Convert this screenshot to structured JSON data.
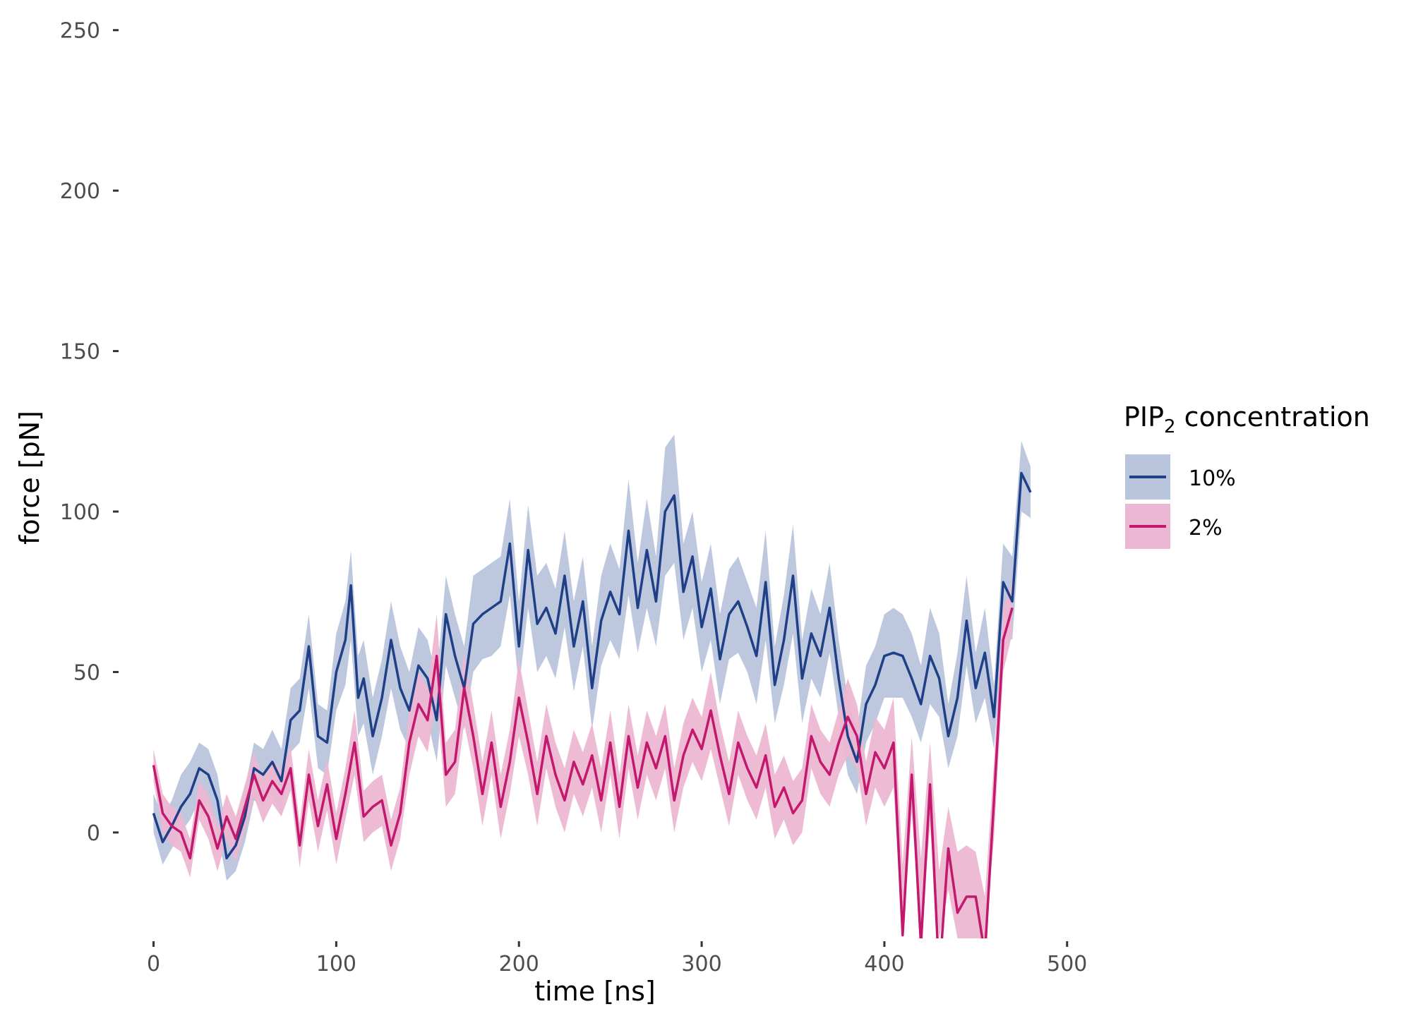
{
  "chart_data": {
    "type": "line",
    "title": "",
    "xlabel": "time [ns]",
    "ylabel": "force [pN]",
    "xlim": [
      -6,
      514
    ],
    "ylim": [
      -33,
      255
    ],
    "x_ticks": [
      0,
      100,
      200,
      300,
      400,
      500
    ],
    "y_ticks": [
      0,
      50,
      100,
      150,
      200,
      250
    ],
    "grid": false,
    "legend": {
      "title_main": "PIP",
      "title_sub": "2",
      "title_rest": " concentration",
      "placement": "right"
    },
    "series": [
      {
        "name": "10%",
        "line_color": "#1f3f87",
        "band_color": "#b9c5dc",
        "x": [
          0,
          5,
          10,
          15,
          20,
          25,
          30,
          35,
          40,
          45,
          50,
          55,
          60,
          65,
          70,
          75,
          80,
          85,
          90,
          95,
          100,
          105,
          108,
          112,
          115,
          120,
          125,
          130,
          135,
          140,
          145,
          150,
          155,
          160,
          165,
          170,
          175,
          180,
          185,
          190,
          195,
          200,
          205,
          210,
          215,
          220,
          225,
          230,
          235,
          240,
          245,
          250,
          255,
          260,
          265,
          270,
          275,
          280,
          285,
          290,
          295,
          300,
          305,
          310,
          315,
          320,
          325,
          330,
          335,
          340,
          345,
          350,
          355,
          360,
          365,
          370,
          375,
          380,
          385,
          390,
          395,
          400,
          405,
          410,
          415,
          420,
          425,
          430,
          435,
          440,
          445,
          450,
          455,
          460,
          465,
          470,
          475,
          480
        ],
        "y": [
          6,
          -3,
          2,
          8,
          12,
          20,
          18,
          10,
          -8,
          -4,
          5,
          20,
          18,
          22,
          16,
          35,
          38,
          58,
          30,
          28,
          50,
          60,
          77,
          42,
          48,
          30,
          42,
          60,
          45,
          38,
          52,
          48,
          35,
          68,
          55,
          45,
          65,
          68,
          70,
          72,
          90,
          58,
          88,
          65,
          70,
          62,
          80,
          58,
          72,
          45,
          66,
          75,
          68,
          94,
          70,
          88,
          72,
          100,
          105,
          75,
          86,
          64,
          76,
          54,
          68,
          72,
          64,
          55,
          78,
          46,
          60,
          80,
          48,
          62,
          55,
          70,
          48,
          30,
          22,
          40,
          46,
          55,
          56,
          55,
          48,
          40,
          55,
          48,
          30,
          42,
          66,
          45,
          56,
          36,
          78,
          72,
          112,
          106
        ],
        "lo": [
          0,
          -10,
          -5,
          0,
          4,
          10,
          8,
          0,
          -15,
          -12,
          -3,
          10,
          8,
          12,
          6,
          25,
          28,
          45,
          20,
          18,
          38,
          46,
          60,
          30,
          34,
          18,
          30,
          45,
          32,
          26,
          38,
          35,
          22,
          52,
          42,
          32,
          50,
          54,
          55,
          58,
          74,
          45,
          70,
          50,
          55,
          48,
          64,
          44,
          58,
          32,
          52,
          60,
          54,
          74,
          56,
          70,
          58,
          80,
          84,
          60,
          70,
          50,
          60,
          40,
          54,
          56,
          50,
          40,
          60,
          34,
          46,
          62,
          34,
          48,
          42,
          56,
          36,
          18,
          12,
          28,
          34,
          42,
          42,
          42,
          36,
          28,
          40,
          36,
          20,
          30,
          52,
          34,
          42,
          26,
          62,
          60,
          100,
          98
        ],
        "hi": [
          12,
          5,
          10,
          18,
          22,
          28,
          26,
          18,
          0,
          4,
          14,
          28,
          26,
          32,
          26,
          45,
          48,
          68,
          40,
          38,
          62,
          72,
          88,
          55,
          60,
          42,
          54,
          72,
          58,
          50,
          64,
          60,
          48,
          80,
          68,
          58,
          80,
          82,
          84,
          86,
          104,
          72,
          102,
          80,
          84,
          76,
          94,
          72,
          86,
          58,
          80,
          90,
          82,
          110,
          84,
          104,
          86,
          120,
          124,
          90,
          100,
          78,
          90,
          68,
          82,
          86,
          78,
          70,
          94,
          58,
          74,
          96,
          60,
          76,
          68,
          84,
          60,
          42,
          32,
          52,
          58,
          68,
          70,
          68,
          62,
          52,
          70,
          62,
          40,
          56,
          80,
          56,
          70,
          46,
          90,
          86,
          122,
          114
        ]
      },
      {
        "name": "2%",
        "line_color": "#c2186e",
        "band_color": "#ecb7d2",
        "x": [
          0,
          5,
          10,
          15,
          20,
          25,
          30,
          35,
          40,
          45,
          50,
          55,
          60,
          65,
          70,
          75,
          80,
          85,
          90,
          95,
          100,
          105,
          110,
          115,
          120,
          125,
          130,
          135,
          140,
          145,
          150,
          155,
          160,
          165,
          170,
          175,
          180,
          185,
          190,
          195,
          200,
          205,
          210,
          215,
          220,
          225,
          230,
          235,
          240,
          245,
          250,
          255,
          260,
          265,
          270,
          275,
          280,
          285,
          290,
          295,
          300,
          305,
          310,
          315,
          320,
          325,
          330,
          335,
          340,
          345,
          350,
          355,
          360,
          365,
          370,
          375,
          380,
          385,
          390,
          395,
          400,
          405,
          410,
          415,
          420,
          425,
          430,
          435,
          440,
          445,
          450,
          455,
          460,
          465,
          470
        ],
        "y": [
          21,
          6,
          2,
          0,
          -8,
          10,
          5,
          -5,
          5,
          -2,
          8,
          18,
          10,
          16,
          12,
          20,
          -4,
          18,
          2,
          15,
          -2,
          12,
          28,
          5,
          8,
          10,
          -4,
          6,
          28,
          40,
          35,
          55,
          18,
          22,
          45,
          30,
          12,
          28,
          8,
          22,
          42,
          28,
          12,
          30,
          18,
          10,
          22,
          15,
          24,
          10,
          28,
          8,
          30,
          14,
          28,
          20,
          30,
          10,
          24,
          32,
          26,
          38,
          24,
          12,
          28,
          20,
          14,
          24,
          8,
          14,
          6,
          10,
          30,
          22,
          18,
          28,
          36,
          30,
          12,
          25,
          20,
          28,
          -32,
          18,
          -35,
          15,
          -45,
          -5,
          -25,
          -20,
          -20,
          -38,
          10,
          60,
          70
        ],
        "lo": [
          16,
          0,
          -4,
          -6,
          -14,
          4,
          -2,
          -12,
          -2,
          -9,
          1,
          11,
          3,
          9,
          5,
          13,
          -11,
          10,
          -6,
          7,
          -10,
          4,
          18,
          -3,
          0,
          2,
          -12,
          -2,
          18,
          30,
          25,
          42,
          8,
          12,
          34,
          20,
          2,
          18,
          -2,
          12,
          30,
          18,
          2,
          20,
          8,
          0,
          12,
          5,
          14,
          0,
          18,
          -2,
          20,
          4,
          18,
          10,
          20,
          0,
          14,
          22,
          16,
          26,
          14,
          2,
          18,
          10,
          4,
          14,
          -2,
          4,
          -4,
          0,
          20,
          12,
          8,
          18,
          24,
          20,
          2,
          14,
          8,
          14,
          -33,
          6,
          -33,
          2,
          -33,
          -18,
          -33,
          -33,
          -33,
          -33,
          -2,
          50,
          62
        ],
        "hi": [
          26,
          12,
          8,
          6,
          -2,
          16,
          12,
          2,
          12,
          5,
          15,
          25,
          17,
          23,
          19,
          27,
          3,
          26,
          10,
          23,
          6,
          20,
          38,
          13,
          16,
          18,
          4,
          14,
          38,
          50,
          45,
          68,
          28,
          32,
          56,
          40,
          22,
          38,
          18,
          32,
          54,
          38,
          22,
          40,
          28,
          20,
          32,
          25,
          34,
          20,
          38,
          18,
          40,
          24,
          38,
          30,
          40,
          20,
          34,
          42,
          36,
          50,
          34,
          22,
          38,
          30,
          24,
          34,
          18,
          24,
          16,
          20,
          40,
          32,
          28,
          38,
          48,
          40,
          22,
          36,
          32,
          42,
          -10,
          30,
          -8,
          28,
          -12,
          8,
          -6,
          -4,
          -6,
          -20,
          22,
          70,
          78
        ]
      }
    ]
  }
}
